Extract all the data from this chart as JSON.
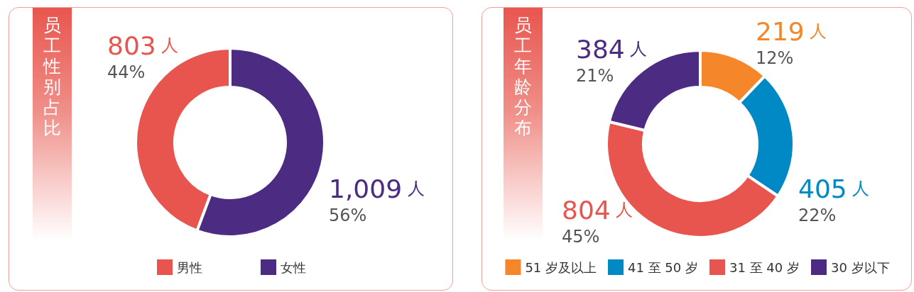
{
  "chart_data": [
    {
      "type": "donut",
      "title": "员工性别占比",
      "categories": [
        "男性",
        "女性"
      ],
      "values": [
        803,
        1009
      ],
      "colors": [
        "#e8554e",
        "#4b2c82"
      ],
      "value_labels": [
        "803 人\n44%",
        "1,009 人\n56%"
      ],
      "legend": "bottom"
    },
    {
      "type": "donut",
      "title": "员工年龄分布",
      "categories": [
        "51 岁及以上",
        "41 至 50 岁",
        "31 至 40 岁",
        "30 岁以下"
      ],
      "values": [
        219,
        405,
        804,
        384
      ],
      "colors": [
        "#f5862a",
        "#0089c4",
        "#e8554e",
        "#4b2c82"
      ],
      "value_labels": [
        "219 人\n12%",
        "405 人\n22%",
        "804 人\n45%",
        "384 人\n21%"
      ],
      "legend": "bottom"
    }
  ]
}
